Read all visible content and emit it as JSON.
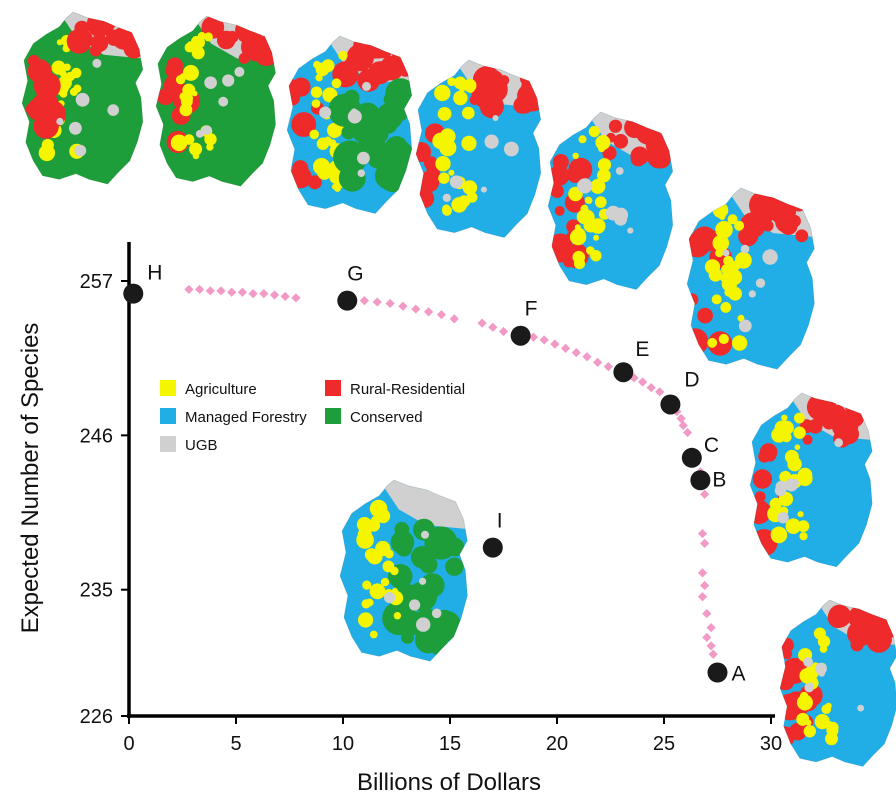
{
  "chart_data": {
    "type": "scatter",
    "xlabel": "Billions of Dollars",
    "ylabel": "Expected Number of Species",
    "xlim": [
      0,
      30
    ],
    "ylim": [
      226,
      257
    ],
    "xticks": [
      0,
      5,
      10,
      15,
      20,
      25,
      30
    ],
    "yticks": [
      226,
      235,
      246,
      257
    ],
    "frontier": [
      [
        2.8,
        256.4
      ],
      [
        3.3,
        256.4
      ],
      [
        3.8,
        256.3
      ],
      [
        4.3,
        256.3
      ],
      [
        4.8,
        256.2
      ],
      [
        5.3,
        256.2
      ],
      [
        5.8,
        256.1
      ],
      [
        6.3,
        256.1
      ],
      [
        6.8,
        256.0
      ],
      [
        7.3,
        255.9
      ],
      [
        7.8,
        255.8
      ],
      [
        10.4,
        255.7
      ],
      [
        11.0,
        255.6
      ],
      [
        11.6,
        255.5
      ],
      [
        12.2,
        255.4
      ],
      [
        12.8,
        255.2
      ],
      [
        13.4,
        255.0
      ],
      [
        14.0,
        254.8
      ],
      [
        14.6,
        254.6
      ],
      [
        15.2,
        254.3
      ],
      [
        16.5,
        254.0
      ],
      [
        17.0,
        253.7
      ],
      [
        17.5,
        253.4
      ],
      [
        18.9,
        253.0
      ],
      [
        19.4,
        252.8
      ],
      [
        19.9,
        252.5
      ],
      [
        20.4,
        252.2
      ],
      [
        20.9,
        251.9
      ],
      [
        21.4,
        251.6
      ],
      [
        21.9,
        251.2
      ],
      [
        22.4,
        250.9
      ],
      [
        23.6,
        250.1
      ],
      [
        24.0,
        249.8
      ],
      [
        24.4,
        249.4
      ],
      [
        24.8,
        249.1
      ],
      [
        25.6,
        247.7
      ],
      [
        25.8,
        247.2
      ],
      [
        25.9,
        246.7
      ],
      [
        26.1,
        246.2
      ],
      [
        26.7,
        243.4
      ],
      [
        26.8,
        242.5
      ],
      [
        26.9,
        241.8
      ],
      [
        26.8,
        239.0
      ],
      [
        26.9,
        238.3
      ],
      [
        26.8,
        236.2
      ],
      [
        26.9,
        235.3
      ],
      [
        26.8,
        234.5
      ],
      [
        27.0,
        233.3
      ],
      [
        27.2,
        232.3
      ],
      [
        27.0,
        231.6
      ],
      [
        27.2,
        231.0
      ],
      [
        27.3,
        230.4
      ]
    ],
    "points": [
      {
        "label": "A",
        "x": 27.5,
        "y": 229.1
      },
      {
        "label": "B",
        "x": 26.7,
        "y": 242.8
      },
      {
        "label": "C",
        "x": 26.3,
        "y": 244.4
      },
      {
        "label": "D",
        "x": 25.3,
        "y": 248.2
      },
      {
        "label": "E",
        "x": 23.1,
        "y": 250.5
      },
      {
        "label": "F",
        "x": 18.3,
        "y": 253.1
      },
      {
        "label": "G",
        "x": 10.2,
        "y": 255.6
      },
      {
        "label": "H",
        "x": 0.2,
        "y": 256.1
      },
      {
        "label": "I",
        "x": 17.0,
        "y": 238.0
      }
    ],
    "legend": [
      {
        "label": "Agriculture",
        "color": "#f5f500"
      },
      {
        "label": "Rural-Residential",
        "color": "#ee2a2a"
      },
      {
        "label": "Managed Forestry",
        "color": "#21aee6"
      },
      {
        "label": "Conserved",
        "color": "#1d9e3a"
      },
      {
        "label": "UGB",
        "color": "#d0d0d0"
      }
    ],
    "colors": {
      "frontier": "#f29ac6",
      "points": "#1a1a1a",
      "axis": "#000000"
    }
  },
  "maps": [
    {
      "name": "map-H",
      "land_use": [
        "Conserved",
        "Agriculture",
        "Rural-Residential",
        "UGB"
      ]
    },
    {
      "name": "map-G",
      "land_use": [
        "Conserved",
        "Rural-Residential",
        "Agriculture",
        "UGB"
      ]
    },
    {
      "name": "map-F",
      "land_use": [
        "Managed Forestry",
        "Rural-Residential",
        "Agriculture",
        "Conserved",
        "UGB"
      ]
    },
    {
      "name": "map-E",
      "land_use": [
        "Managed Forestry",
        "Rural-Residential",
        "Agriculture",
        "UGB"
      ]
    },
    {
      "name": "map-D",
      "land_use": [
        "Managed Forestry",
        "Rural-Residential",
        "Agriculture",
        "UGB"
      ]
    },
    {
      "name": "map-C",
      "land_use": [
        "Managed Forestry",
        "Rural-Residential",
        "Agriculture",
        "UGB"
      ]
    },
    {
      "name": "map-B",
      "land_use": [
        "Managed Forestry",
        "Rural-Residential",
        "Agriculture",
        "UGB"
      ]
    },
    {
      "name": "map-A",
      "land_use": [
        "Managed Forestry",
        "Rural-Residential",
        "Agriculture",
        "UGB"
      ]
    },
    {
      "name": "map-I",
      "land_use": [
        "Managed Forestry",
        "Conserved",
        "Agriculture",
        "UGB"
      ]
    }
  ]
}
